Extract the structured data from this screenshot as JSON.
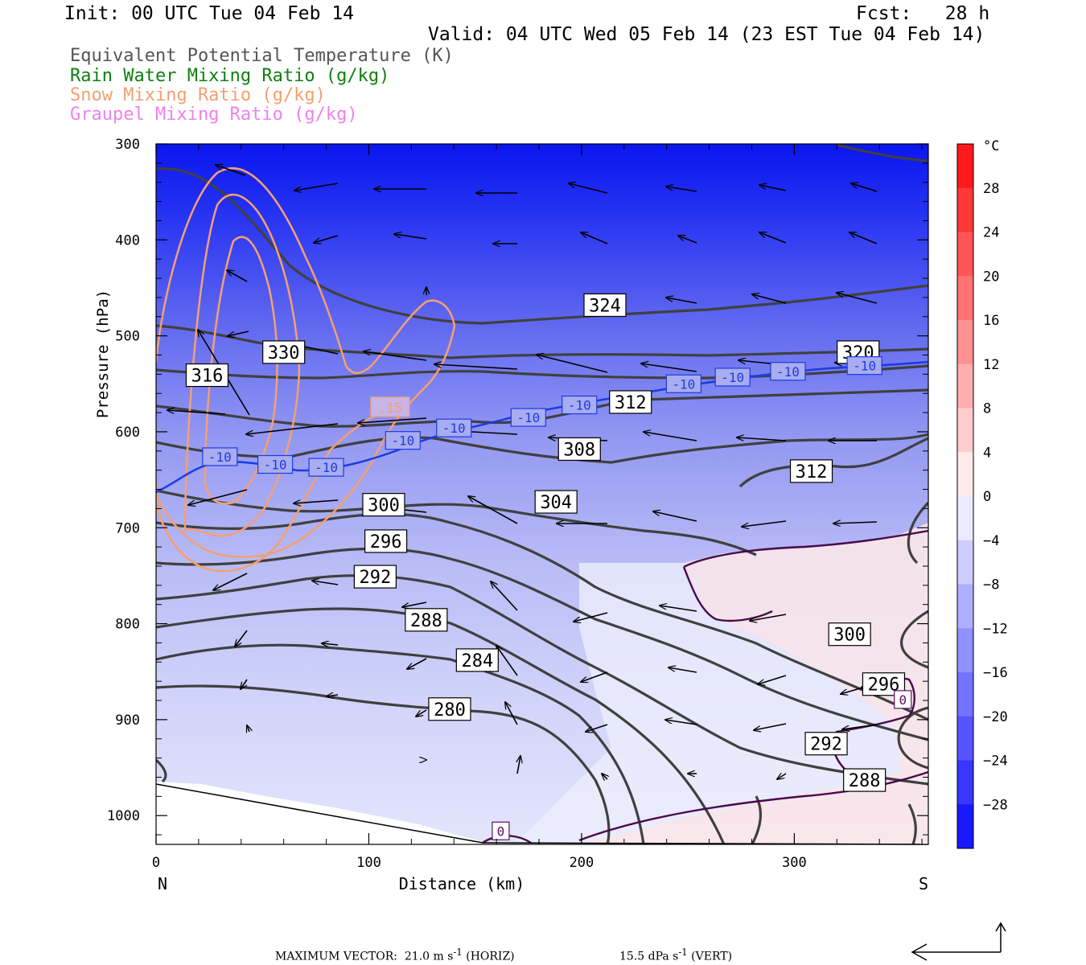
{
  "header": {
    "init": "Init: 00 UTC Tue 04 Feb 14",
    "fcst": "Fcst:   28 h",
    "valid": "Valid: 04 UTC Wed 05 Feb 14 (23 EST Tue 04 Feb 14)"
  },
  "legend": [
    {
      "text": "Equivalent Potential Temperature (K)",
      "color": "#555555"
    },
    {
      "text": "Rain Water Mixing Ratio (g/kg)",
      "color": "#108010"
    },
    {
      "text": "Snow Mixing Ratio (g/kg)",
      "color": "#f4a070"
    },
    {
      "text": "Graupel Mixing Ratio (g/kg)",
      "color": "#ee82ee"
    }
  ],
  "footer": {
    "max_vector": "MAXIMUM VECTOR:  21.0 m s",
    "sup": "-1",
    "horiz": " (HORIZ)",
    "vert_val": "15.5 dPa s",
    "vert": " (VERT)"
  },
  "chart_data": {
    "type": "cross-section",
    "xlabel": "Distance (km)",
    "ylabel": "Pressure (hPa)",
    "xlim": [
      0,
      363
    ],
    "ylim": [
      1030,
      300
    ],
    "x_ticks": [
      0,
      100,
      200,
      300
    ],
    "y_ticks": [
      300,
      400,
      500,
      600,
      700,
      800,
      900,
      1000
    ],
    "x_end_labels": {
      "left": "N",
      "right": "S"
    },
    "colorbar": {
      "unit": "°C",
      "levels": [
        28,
        24,
        20,
        16,
        12,
        8,
        4,
        0,
        -4,
        -8,
        -12,
        -16,
        -20,
        -24,
        -28
      ],
      "range": [
        -32,
        32
      ],
      "cold_color": "#0000ff",
      "warm_color": "#ff0000"
    },
    "theta_e_labels": [
      {
        "text": "324",
        "x": 211,
        "p": 468
      },
      {
        "text": "330",
        "x": 60,
        "p": 517
      },
      {
        "text": "320",
        "x": 330,
        "p": 517
      },
      {
        "text": "316",
        "x": 24,
        "p": 541
      },
      {
        "text": "312",
        "x": 223,
        "p": 569
      },
      {
        "text": "308",
        "x": 199,
        "p": 618
      },
      {
        "text": "312",
        "x": 308,
        "p": 641
      },
      {
        "text": "304",
        "x": 188,
        "p": 673
      },
      {
        "text": "300",
        "x": 107,
        "p": 676
      },
      {
        "text": "296",
        "x": 108,
        "p": 714
      },
      {
        "text": "292",
        "x": 103,
        "p": 751
      },
      {
        "text": "288",
        "x": 127,
        "p": 796
      },
      {
        "text": "284",
        "x": 151,
        "p": 838
      },
      {
        "text": "280",
        "x": 138,
        "p": 889
      },
      {
        "text": "300",
        "x": 326,
        "p": 811
      },
      {
        "text": "296",
        "x": 342,
        "p": 863
      },
      {
        "text": "292",
        "x": 315,
        "p": 925
      },
      {
        "text": "288",
        "x": 333,
        "p": 963
      }
    ],
    "temp_labels": [
      {
        "text": "-10",
        "x": 30,
        "p": 626
      },
      {
        "text": "-10",
        "x": 56,
        "p": 634
      },
      {
        "text": "-10",
        "x": 80,
        "p": 637
      },
      {
        "text": "-10",
        "x": 116,
        "p": 609
      },
      {
        "text": "-10",
        "x": 140,
        "p": 596
      },
      {
        "text": "-10",
        "x": 175,
        "p": 585
      },
      {
        "text": "-10",
        "x": 199,
        "p": 572
      },
      {
        "text": "-10",
        "x": 248,
        "p": 550
      },
      {
        "text": "-10",
        "x": 271,
        "p": 543
      },
      {
        "text": "-10",
        "x": 297,
        "p": 537
      },
      {
        "text": "-10",
        "x": 333,
        "p": 531
      },
      {
        "text": "0",
        "x": 162,
        "p": 1016
      },
      {
        "text": "0",
        "x": 351,
        "p": 879
      }
    ],
    "snow_labels": [
      {
        "text": ".15",
        "x": 110,
        "p": 574
      }
    ]
  }
}
